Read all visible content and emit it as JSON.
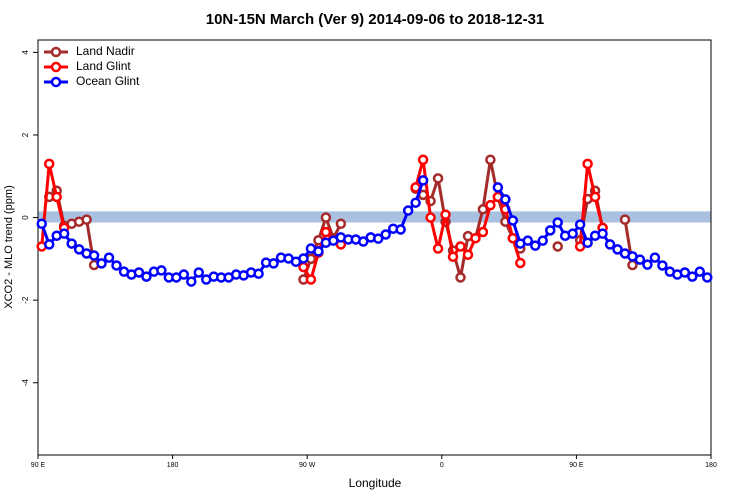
{
  "chart_data": {
    "type": "line",
    "title": "10N-15N March (Ver 9)   2014-09-06 to 2018-12-31",
    "xlabel": "Longitude",
    "ylabel": "XCO2 - MLO trend (ppm)",
    "xlim": [
      90,
      540
    ],
    "ylim": [
      -5.75,
      4.3
    ],
    "xticks": [
      {
        "value": 90,
        "label": "90 E"
      },
      180,
      {
        "value": 270,
        "label": "90 W"
      },
      {
        "value": 360,
        "label": "0"
      },
      {
        "value": 450,
        "label": "90 E"
      },
      {
        "value": 540,
        "label": "180"
      }
    ],
    "yticks": [
      -4,
      -2,
      0,
      2,
      4
    ],
    "reference_band": [
      -0.12,
      0.15
    ],
    "band_color": "#a9c0e0",
    "legend": "top-left",
    "x": [
      92.5,
      97.5,
      102.5,
      107.5,
      112.5,
      117.5,
      122.5,
      127.5,
      132.5,
      137.5,
      142.5,
      147.5,
      152.5,
      157.5,
      162.5,
      167.5,
      172.5,
      177.5,
      182.5,
      187.5,
      192.5,
      197.5,
      202.5,
      207.5,
      212.5,
      217.5,
      222.5,
      227.5,
      232.5,
      237.5,
      242.5,
      247.5,
      252.5,
      257.5,
      262.5,
      267.5,
      272.5,
      277.5,
      282.5,
      287.5,
      292.5,
      297.5,
      302.5,
      307.5,
      312.5,
      317.5,
      322.5,
      327.5,
      332.5,
      337.5,
      342.5,
      347.5,
      352.5,
      357.5,
      362.5,
      367.5,
      372.5,
      377.5,
      382.5,
      387.5,
      392.5,
      397.5,
      402.5,
      407.5,
      412.5,
      417.5,
      422.5,
      427.5,
      432.5,
      437.5,
      442.5,
      447.5,
      452.5,
      457.5,
      462.5,
      467.5,
      472.5,
      477.5,
      482.5,
      487.5,
      492.5,
      497.5,
      502.5,
      507.5,
      512.5,
      517.5,
      522.5,
      527.5,
      532.5,
      537.5
    ],
    "series": [
      {
        "name": "Land Nadir",
        "color": "#a52a2a",
        "values": [
          null,
          0.5,
          0.65,
          -0.2,
          -0.15,
          -0.1,
          -0.05,
          -1.15,
          null,
          null,
          null,
          null,
          null,
          null,
          null,
          null,
          null,
          null,
          null,
          null,
          null,
          null,
          null,
          null,
          null,
          null,
          null,
          null,
          null,
          null,
          null,
          null,
          null,
          null,
          null,
          -1.5,
          -1.0,
          -0.55,
          0.0,
          -0.5,
          -0.15,
          null,
          null,
          null,
          null,
          null,
          null,
          null,
          null,
          null,
          0.7,
          0.55,
          0.4,
          0.95,
          -0.1,
          -0.8,
          -1.45,
          -0.45,
          -0.5,
          0.2,
          1.4,
          0.5,
          -0.1,
          -0.5,
          -0.75,
          null,
          null,
          null,
          null,
          -0.7,
          null,
          null,
          -0.55,
          0.45,
          0.65,
          -0.25,
          null,
          null,
          -0.05,
          -1.15,
          null,
          null,
          null,
          null,
          null,
          null,
          null,
          null,
          null,
          null
        ]
      },
      {
        "name": "Land Glint",
        "color": "#ff0000",
        "values": [
          -0.7,
          1.3,
          0.5,
          -0.25,
          null,
          null,
          null,
          null,
          null,
          null,
          null,
          null,
          null,
          null,
          null,
          null,
          null,
          null,
          null,
          null,
          null,
          null,
          null,
          null,
          null,
          null,
          null,
          null,
          null,
          null,
          null,
          null,
          null,
          null,
          null,
          -1.2,
          -1.5,
          -0.85,
          -0.35,
          -0.55,
          -0.65,
          null,
          null,
          null,
          null,
          null,
          null,
          null,
          null,
          null,
          0.73,
          1.4,
          0.0,
          -0.75,
          0.07,
          -0.95,
          -0.7,
          -0.9,
          -0.5,
          -0.35,
          0.3,
          0.5,
          0.2,
          -0.5,
          -1.1,
          null,
          null,
          null,
          null,
          null,
          null,
          null,
          -0.7,
          1.3,
          0.5,
          -0.25,
          null,
          null,
          null,
          null,
          null,
          null,
          null,
          null,
          null,
          null,
          null,
          null,
          null,
          null
        ]
      },
      {
        "name": "Ocean Glint",
        "color": "#0000ff",
        "values": [
          -0.15,
          -0.65,
          -0.44,
          -0.39,
          -0.63,
          -0.77,
          -0.87,
          -0.92,
          -1.11,
          -0.97,
          -1.16,
          -1.31,
          -1.38,
          -1.33,
          -1.43,
          -1.31,
          -1.28,
          -1.45,
          -1.45,
          -1.38,
          -1.55,
          -1.33,
          -1.5,
          -1.43,
          -1.45,
          -1.45,
          -1.38,
          -1.4,
          -1.33,
          -1.36,
          -1.09,
          -1.11,
          -0.97,
          -0.99,
          -1.07,
          -0.99,
          -0.75,
          -0.82,
          -0.61,
          -0.56,
          -0.48,
          -0.53,
          -0.53,
          -0.58,
          -0.48,
          -0.51,
          -0.41,
          -0.27,
          -0.29,
          0.17,
          0.36,
          0.9,
          null,
          null,
          null,
          null,
          null,
          null,
          null,
          null,
          null,
          0.73,
          0.44,
          -0.07,
          -0.63,
          -0.56,
          -0.68,
          -0.56,
          -0.31,
          -0.12,
          -0.44,
          -0.39,
          -0.17,
          -0.61,
          -0.44,
          -0.39,
          -0.65,
          -0.77,
          -0.87,
          -0.94,
          -1.02,
          -1.14,
          -0.97,
          -1.16,
          -1.31,
          -1.38,
          -1.33,
          -1.43,
          -1.31,
          -1.45
        ]
      }
    ]
  }
}
